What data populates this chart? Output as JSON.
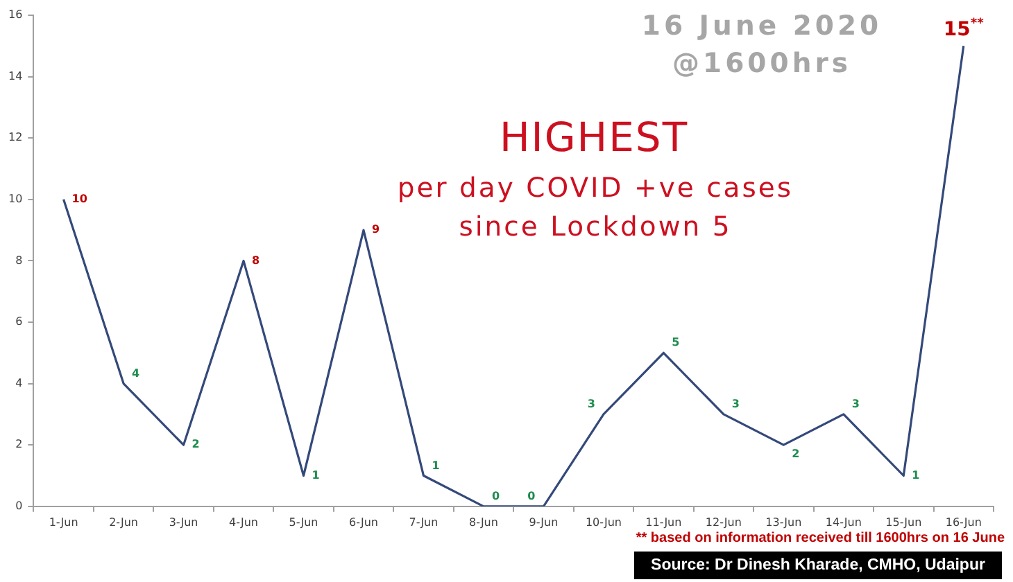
{
  "chart_data": {
    "type": "line",
    "title": "HIGHEST",
    "subtitle": "per day COVID +ve cases since Lockdown 5",
    "annotations": [
      "16 June 2020 @1600hrs",
      "** based on information received till 1600hrs on 16 June",
      "Source: Dr Dinesh Kharade, CMHO, Udaipur"
    ],
    "categories": [
      "1-Jun",
      "2-Jun",
      "3-Jun",
      "4-Jun",
      "5-Jun",
      "6-Jun",
      "7-Jun",
      "8-Jun",
      "9-Jun",
      "10-Jun",
      "11-Jun",
      "12-Jun",
      "13-Jun",
      "14-Jun",
      "15-Jun",
      "16-Jun"
    ],
    "values": [
      10,
      4,
      2,
      8,
      1,
      9,
      1,
      0,
      0,
      3,
      5,
      3,
      2,
      3,
      1,
      15
    ],
    "value_labels": [
      "10",
      "4",
      "2",
      "8",
      "1",
      "9",
      "1",
      "0",
      "0",
      "3",
      "5",
      "3",
      "2",
      "3",
      "1",
      "15$^{**}$"
    ],
    "color": "#34497a",
    "colors": [
      "#c00000",
      "#1e8c4e",
      "#1e8c4e",
      "#c00000",
      "#1e8c4e",
      "#c00000",
      "#1e8c4e",
      "#1e8c4e",
      "#1e8c4e",
      "#1e8c4e",
      "#1e8c4e",
      "#1e8c4e",
      "#1e8c4e",
      "#1e8c4e",
      "#1e8c4e",
      "#c00000"
    ],
    "ylim": [
      0,
      16
    ],
    "yticks": [
      0,
      2,
      4,
      6,
      8,
      10,
      12,
      14,
      16
    ],
    "marker": "none",
    "line_style": "solid"
  }
}
